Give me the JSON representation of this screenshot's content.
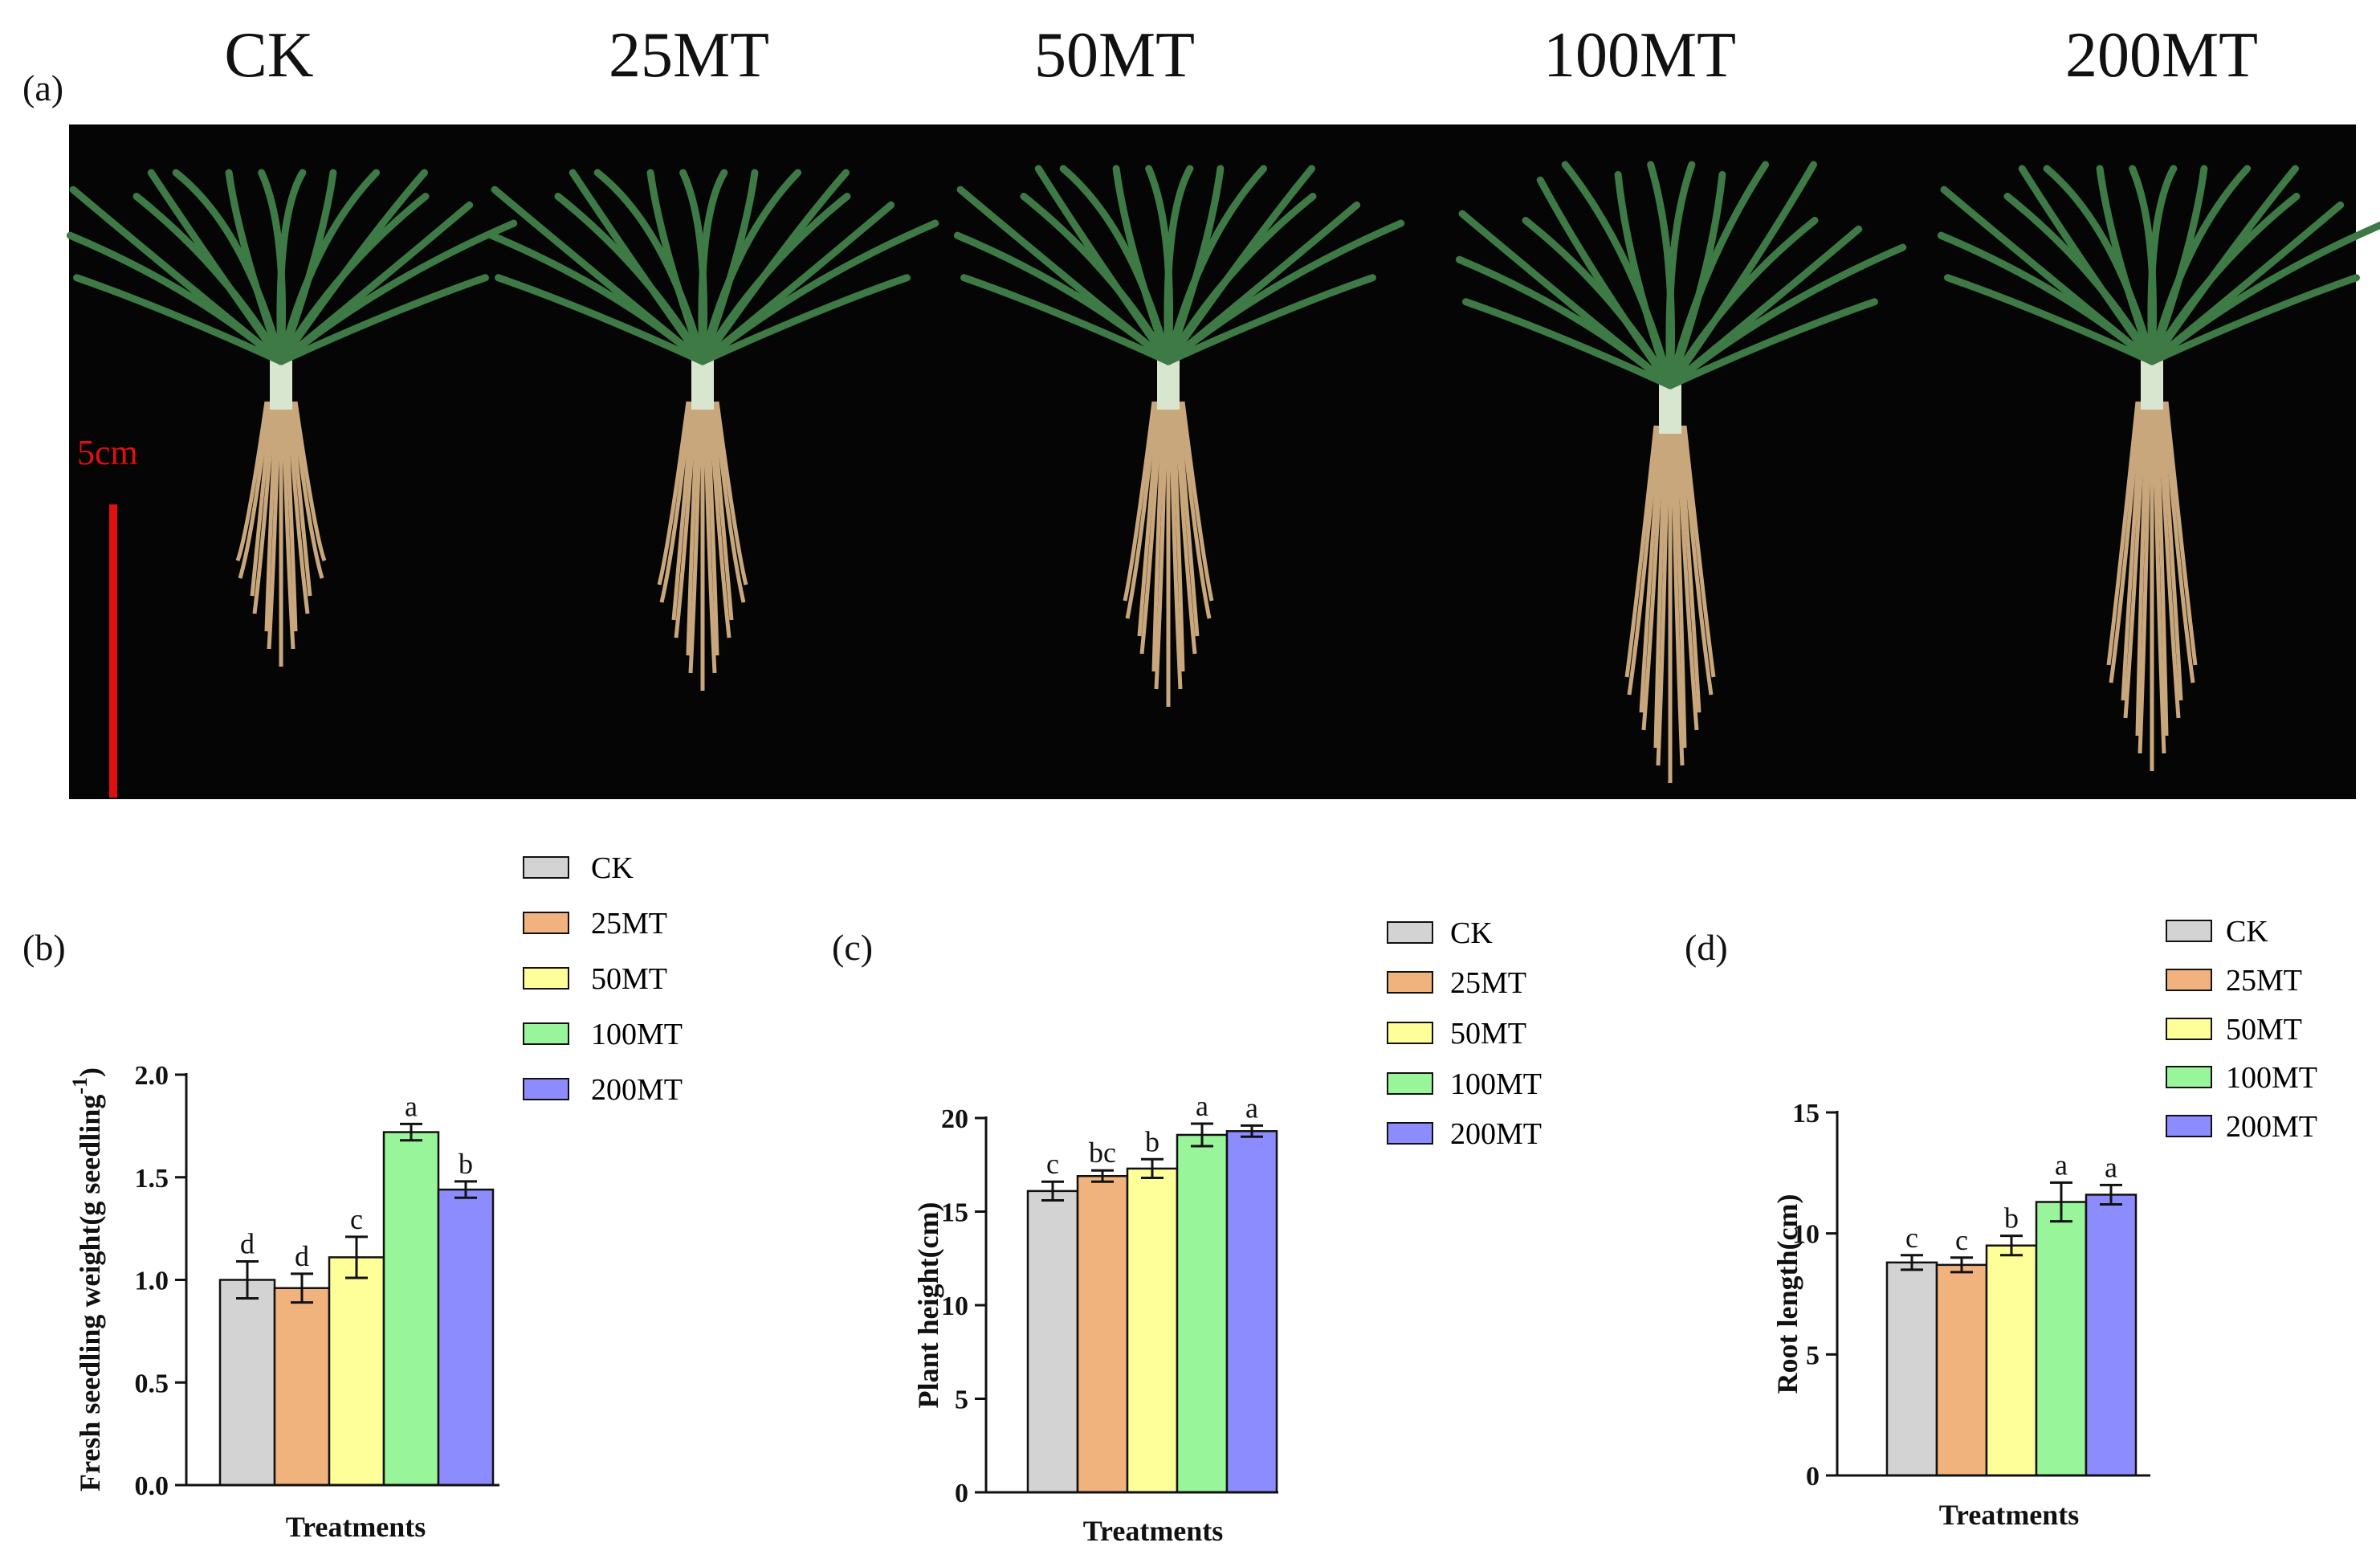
{
  "photo_panel": {
    "label": "(a)",
    "treatments": [
      "CK",
      "25MT",
      "50MT",
      "100MT",
      "200MT"
    ],
    "scale_label": "5cm"
  },
  "legend": {
    "entries": [
      "CK",
      "25MT",
      "50MT",
      "100MT",
      "200MT"
    ],
    "colors": [
      "#d3d3d3",
      "#f0b37e",
      "#ffff99",
      "#99f599",
      "#8c8cff"
    ]
  },
  "chart_data": [
    {
      "panel_label": "(b)",
      "type": "bar",
      "categories": [
        "CK",
        "25MT",
        "50MT",
        "100MT",
        "200MT"
      ],
      "values": [
        1.0,
        0.96,
        1.11,
        1.72,
        1.44
      ],
      "errors": [
        0.09,
        0.07,
        0.1,
        0.04,
        0.04
      ],
      "letters": [
        "d",
        "d",
        "c",
        "a",
        "b"
      ],
      "xlabel": "Treatments",
      "ylabel": "Fresh seedling weight(g seedling",
      "ylabel_superscript": "-1",
      "ylabel_close": ")",
      "ylim": [
        0,
        2.0
      ],
      "yticks": [
        "0.0",
        "0.5",
        "1.0",
        "1.5",
        "2.0"
      ]
    },
    {
      "panel_label": "(c)",
      "type": "bar",
      "categories": [
        "CK",
        "25MT",
        "50MT",
        "100MT",
        "200MT"
      ],
      "values": [
        16.1,
        16.9,
        17.3,
        19.1,
        19.3
      ],
      "errors": [
        0.5,
        0.3,
        0.5,
        0.6,
        0.3
      ],
      "letters": [
        "c",
        "bc",
        "b",
        "a",
        "a"
      ],
      "xlabel": "Treatments",
      "ylabel": "Plant height(cm)",
      "ylim": [
        0,
        20
      ],
      "yticks": [
        "0",
        "5",
        "10",
        "15",
        "20"
      ]
    },
    {
      "panel_label": "(d)",
      "type": "bar",
      "categories": [
        "CK",
        "25MT",
        "50MT",
        "100MT",
        "200MT"
      ],
      "values": [
        8.8,
        8.7,
        9.5,
        11.3,
        11.6
      ],
      "errors": [
        0.3,
        0.3,
        0.4,
        0.8,
        0.4
      ],
      "letters": [
        "c",
        "c",
        "b",
        "a",
        "a"
      ],
      "xlabel": "Treatments",
      "ylabel": "Root length(cm)",
      "ylim": [
        0,
        15
      ],
      "yticks": [
        "0",
        "5",
        "10",
        "15"
      ]
    }
  ]
}
